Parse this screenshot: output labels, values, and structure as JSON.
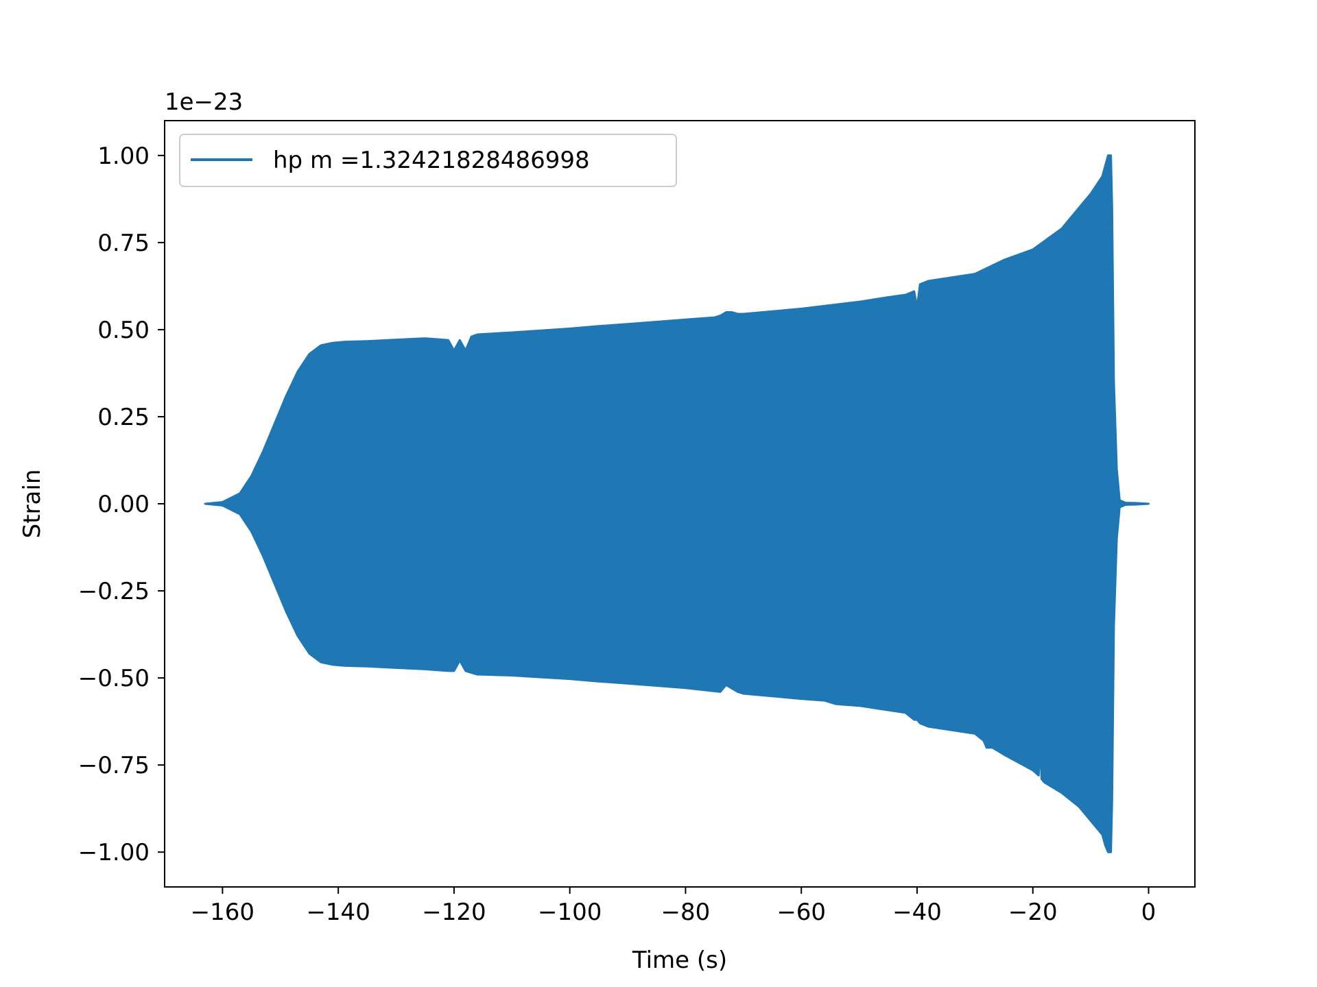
{
  "chart_data": {
    "type": "line",
    "title": "",
    "xlabel": "Time (s)",
    "ylabel": "Strain",
    "y_offset_text": "1e−23",
    "xlim": [
      -170,
      8
    ],
    "ylim": [
      -1.1,
      1.1
    ],
    "xticks": [
      -160,
      -140,
      -120,
      -100,
      -80,
      -60,
      -40,
      -20,
      0
    ],
    "xtick_labels": [
      "−160",
      "−140",
      "−120",
      "−100",
      "−80",
      "−60",
      "−40",
      "−20",
      "0"
    ],
    "yticks": [
      1.0,
      0.75,
      0.5,
      0.25,
      0.0,
      -0.25,
      -0.5,
      -0.75,
      -1.0
    ],
    "ytick_labels": [
      "1.00",
      "0.75",
      "0.50",
      "0.25",
      "0.00",
      "−0.25",
      "−0.50",
      "−0.75",
      "−1.00"
    ],
    "grid": false,
    "legend_position": "upper left",
    "series": [
      {
        "name": "hp m =1.32421828486998",
        "color": "#1f77b4",
        "upper_envelope": {
          "x": [
            -163,
            -160,
            -157,
            -155,
            -153,
            -151,
            -149,
            -147,
            -145,
            -143,
            -141,
            -139,
            -135,
            -130,
            -125,
            -121,
            -120,
            -119,
            -118,
            -117,
            -116,
            -110,
            -100,
            -95,
            -90,
            -80,
            -75,
            -74,
            -73,
            -72,
            -71,
            -70,
            -60,
            -50,
            -45,
            -42,
            -40.5,
            -40,
            -39.5,
            -38,
            -30,
            -25,
            -20,
            -15,
            -12,
            -10,
            -8,
            -7.5,
            -7,
            -6.5,
            -6.3,
            -6.0,
            -5.5,
            -5,
            -4,
            -2,
            0
          ],
          "y": [
            0,
            0.005,
            0.03,
            0.08,
            0.15,
            0.23,
            0.31,
            0.38,
            0.43,
            0.455,
            0.462,
            0.465,
            0.467,
            0.471,
            0.475,
            0.47,
            0.44,
            0.47,
            0.44,
            0.48,
            0.486,
            0.492,
            0.503,
            0.51,
            0.516,
            0.529,
            0.535,
            0.54,
            0.55,
            0.55,
            0.545,
            0.545,
            0.56,
            0.58,
            0.593,
            0.6,
            0.61,
            0.565,
            0.63,
            0.64,
            0.66,
            0.7,
            0.73,
            0.79,
            0.85,
            0.89,
            0.94,
            0.97,
            1.0,
            1.0,
            0.85,
            0.35,
            0.1,
            0.01,
            0.003,
            0.002,
            0.0
          ]
        },
        "lower_envelope": {
          "x": [
            -163,
            -160,
            -157,
            -155,
            -153,
            -151,
            -149,
            -147,
            -145,
            -143,
            -141,
            -139,
            -135,
            -130,
            -125,
            -121,
            -120,
            -119,
            -118,
            -117,
            -116,
            -110,
            -100,
            -95,
            -90,
            -80,
            -74,
            -73,
            -72,
            -71,
            -70,
            -60,
            -56,
            -55,
            -54,
            -50,
            -42,
            -40.5,
            -40,
            -39.5,
            -38,
            -30,
            -28.5,
            -28,
            -27,
            -25,
            -20,
            -19,
            -18.7,
            -18.5,
            -18,
            -15,
            -12,
            -10,
            -8,
            -7.5,
            -7,
            -6.5,
            -6.3,
            -6.0,
            -5.5,
            -5,
            -4,
            -2,
            0
          ],
          "y": [
            0,
            -0.005,
            -0.03,
            -0.08,
            -0.15,
            -0.23,
            -0.31,
            -0.38,
            -0.43,
            -0.455,
            -0.462,
            -0.465,
            -0.467,
            -0.471,
            -0.475,
            -0.48,
            -0.48,
            -0.45,
            -0.48,
            -0.485,
            -0.49,
            -0.493,
            -0.503,
            -0.51,
            -0.516,
            -0.529,
            -0.54,
            -0.52,
            -0.53,
            -0.54,
            -0.545,
            -0.56,
            -0.565,
            -0.57,
            -0.575,
            -0.58,
            -0.6,
            -0.62,
            -0.62,
            -0.63,
            -0.64,
            -0.66,
            -0.68,
            -0.7,
            -0.7,
            -0.72,
            -0.765,
            -0.78,
            -0.69,
            -0.79,
            -0.8,
            -0.83,
            -0.87,
            -0.91,
            -0.95,
            -0.98,
            -1.0,
            -1.0,
            -0.85,
            -0.35,
            -0.1,
            -0.01,
            -0.003,
            -0.002,
            0.0
          ]
        }
      }
    ]
  }
}
